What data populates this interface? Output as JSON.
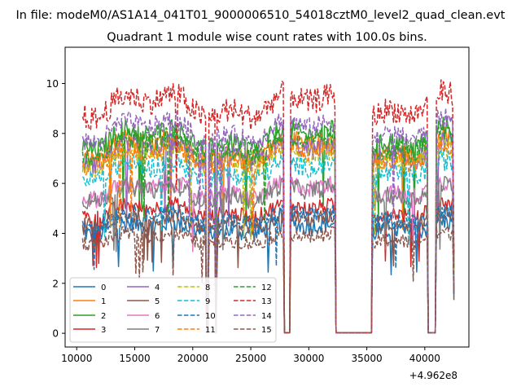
{
  "figure": {
    "suptitle": "In file: modeM0/AS1A14_041T01_9000006510_54018cztM0_level2_quad_clean.evt"
  },
  "chart_data": {
    "type": "line",
    "title": "Quadrant 1 module wise count rates with 100.0s bins.",
    "xlabel": "",
    "ylabel": "",
    "x_offset_label": "+4.962e8",
    "xlim": [
      9000,
      43800
    ],
    "ylim": [
      -0.55,
      11.45
    ],
    "xticks": [
      10000,
      15000,
      20000,
      25000,
      30000,
      35000,
      40000
    ],
    "xtick_labels": [
      "10000",
      "15000",
      "20000",
      "25000",
      "30000",
      "35000",
      "40000"
    ],
    "yticks": [
      0,
      2,
      4,
      6,
      8,
      10
    ],
    "ytick_labels": [
      "0",
      "2",
      "4",
      "6",
      "8",
      "10"
    ],
    "grid": false,
    "legend_position": "lower-left",
    "legend_columns": 4,
    "segments": [
      [
        10500,
        21100
      ],
      [
        21400,
        21900
      ],
      [
        22100,
        27800
      ],
      [
        28450,
        32250
      ],
      [
        35500,
        40200
      ],
      [
        41000,
        42450
      ]
    ],
    "series": [
      {
        "name": "0",
        "color": "#1f77b4",
        "dash": "solid",
        "level": 4.2,
        "amp": 0.35
      },
      {
        "name": "1",
        "color": "#ff7f0e",
        "dash": "solid",
        "level": 7.4,
        "amp": 0.4
      },
      {
        "name": "2",
        "color": "#2ca02c",
        "dash": "solid",
        "level": 7.8,
        "amp": 0.4
      },
      {
        "name": "3",
        "color": "#d62728",
        "dash": "solid",
        "level": 4.9,
        "amp": 0.3
      },
      {
        "name": "4",
        "color": "#9467bd",
        "dash": "solid",
        "level": 7.2,
        "amp": 0.4
      },
      {
        "name": "5",
        "color": "#8c564b",
        "dash": "solid",
        "level": 4.5,
        "amp": 0.35
      },
      {
        "name": "6",
        "color": "#e377c2",
        "dash": "solid",
        "level": 5.7,
        "amp": 0.35
      },
      {
        "name": "7",
        "color": "#7f7f7f",
        "dash": "solid",
        "level": 5.6,
        "amp": 0.35
      },
      {
        "name": "8",
        "color": "#bcbd22",
        "dash": "dashed",
        "level": 7.0,
        "amp": 0.4
      },
      {
        "name": "9",
        "color": "#17becf",
        "dash": "dashed",
        "level": 6.5,
        "amp": 0.4
      },
      {
        "name": "10",
        "color": "#1f77b4",
        "dash": "dashed",
        "level": 4.6,
        "amp": 0.35
      },
      {
        "name": "11",
        "color": "#ff7f0e",
        "dash": "dashed",
        "level": 7.1,
        "amp": 0.4
      },
      {
        "name": "12",
        "color": "#2ca02c",
        "dash": "dashed",
        "level": 7.5,
        "amp": 0.4
      },
      {
        "name": "13",
        "color": "#d62728",
        "dash": "dashed",
        "level": 9.1,
        "amp": 0.5
      },
      {
        "name": "14",
        "color": "#9467bd",
        "dash": "dashed",
        "level": 8.1,
        "amp": 0.4
      },
      {
        "name": "15",
        "color": "#8c564b",
        "dash": "dashed",
        "level": 3.8,
        "amp": 0.3
      }
    ]
  }
}
